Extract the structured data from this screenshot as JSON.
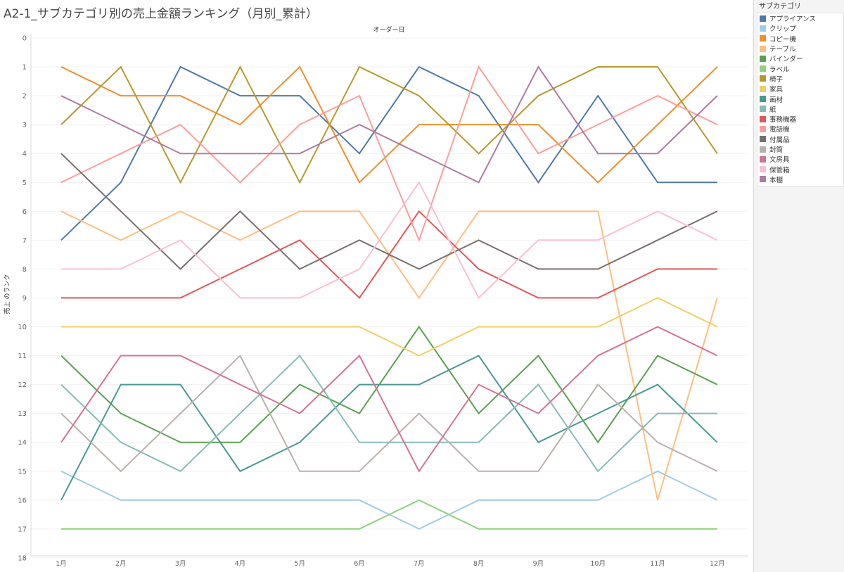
{
  "title": "A2-1_サブカテゴリ別の売上金額ランキング（月別_累計）",
  "legend": {
    "title": "サブカテゴリ",
    "items": [
      {
        "name": "アプライアンス",
        "color": "#4e79a7"
      },
      {
        "name": "クリップ",
        "color": "#a0cbe8"
      },
      {
        "name": "コピー機",
        "color": "#f28e2b"
      },
      {
        "name": "テーブル",
        "color": "#ffbe7d"
      },
      {
        "name": "バインダー",
        "color": "#59a14f"
      },
      {
        "name": "ラベル",
        "color": "#8cd17d"
      },
      {
        "name": "椅子",
        "color": "#b6992d"
      },
      {
        "name": "家具",
        "color": "#f1ce63"
      },
      {
        "name": "画材",
        "color": "#499894"
      },
      {
        "name": "紙",
        "color": "#86bcb6"
      },
      {
        "name": "事務機器",
        "color": "#e15759"
      },
      {
        "name": "電話機",
        "color": "#ff9d9a"
      },
      {
        "name": "付属品",
        "color": "#79706e"
      },
      {
        "name": "封筒",
        "color": "#bab0ac"
      },
      {
        "name": "文房具",
        "color": "#d37295"
      },
      {
        "name": "保管箱",
        "color": "#fabfd2"
      },
      {
        "name": "本棚",
        "color": "#b07aa1"
      }
    ]
  },
  "chart_data": {
    "type": "line",
    "title": "A2-1_サブカテゴリ別の売上金額ランキング（月別_累計）",
    "xlabel": "オーダー日",
    "ylabel": "売上 のランク",
    "categories": [
      "1月",
      "2月",
      "3月",
      "4月",
      "5月",
      "6月",
      "7月",
      "8月",
      "9月",
      "10月",
      "11月",
      "12月"
    ],
    "ylim": [
      0,
      18
    ],
    "y_reversed": true,
    "yticks": [
      0,
      1,
      2,
      3,
      4,
      5,
      6,
      7,
      8,
      9,
      10,
      11,
      12,
      13,
      14,
      15,
      16,
      17,
      18
    ],
    "grid": true,
    "legend_position": "right",
    "series": [
      {
        "name": "アプライアンス",
        "color": "#4e79a7",
        "values": [
          7,
          5,
          1,
          2,
          2,
          4,
          1,
          2,
          5,
          2,
          5,
          5
        ]
      },
      {
        "name": "クリップ",
        "color": "#a0cbe8",
        "values": [
          15,
          16,
          16,
          16,
          16,
          16,
          17,
          16,
          16,
          16,
          15,
          16
        ]
      },
      {
        "name": "コピー機",
        "color": "#f28e2b",
        "values": [
          1,
          2,
          2,
          3,
          1,
          5,
          3,
          3,
          3,
          5,
          3,
          1
        ]
      },
      {
        "name": "テーブル",
        "color": "#ffbe7d",
        "values": [
          6,
          7,
          6,
          7,
          6,
          6,
          9,
          6,
          6,
          6,
          16,
          9
        ]
      },
      {
        "name": "バインダー",
        "color": "#59a14f",
        "values": [
          11,
          13,
          14,
          14,
          12,
          13,
          10,
          13,
          11,
          14,
          11,
          12
        ]
      },
      {
        "name": "ラベル",
        "color": "#8cd17d",
        "values": [
          17,
          17,
          17,
          17,
          17,
          17,
          16,
          17,
          17,
          17,
          17,
          17
        ]
      },
      {
        "name": "椅子",
        "color": "#b6992d",
        "values": [
          3,
          1,
          5,
          1,
          5,
          1,
          2,
          4,
          2,
          1,
          1,
          4
        ]
      },
      {
        "name": "家具",
        "color": "#f1ce63",
        "values": [
          10,
          10,
          10,
          10,
          10,
          10,
          11,
          10,
          10,
          10,
          9,
          10
        ]
      },
      {
        "name": "画材",
        "color": "#499894",
        "values": [
          16,
          12,
          12,
          15,
          14,
          12,
          12,
          11,
          14,
          13,
          12,
          14
        ]
      },
      {
        "name": "紙",
        "color": "#86bcb6",
        "values": [
          12,
          14,
          15,
          13,
          11,
          14,
          14,
          14,
          12,
          15,
          13,
          13
        ]
      },
      {
        "name": "事務機器",
        "color": "#e15759",
        "values": [
          9,
          9,
          9,
          8,
          7,
          9,
          6,
          8,
          9,
          9,
          8,
          8
        ]
      },
      {
        "name": "電話機",
        "color": "#ff9d9a",
        "values": [
          5,
          4,
          3,
          5,
          3,
          2,
          7,
          1,
          4,
          3,
          2,
          3
        ]
      },
      {
        "name": "付属品",
        "color": "#79706e",
        "values": [
          4,
          6,
          8,
          6,
          8,
          7,
          8,
          7,
          8,
          8,
          7,
          6
        ]
      },
      {
        "name": "封筒",
        "color": "#bab0ac",
        "values": [
          13,
          15,
          13,
          11,
          15,
          15,
          13,
          15,
          15,
          12,
          14,
          15
        ]
      },
      {
        "name": "文房具",
        "color": "#d37295",
        "values": [
          14,
          11,
          11,
          12,
          13,
          11,
          15,
          12,
          13,
          11,
          10,
          11
        ]
      },
      {
        "name": "保管箱",
        "color": "#fabfd2",
        "values": [
          8,
          8,
          7,
          9,
          9,
          8,
          5,
          9,
          7,
          7,
          6,
          7
        ]
      },
      {
        "name": "本棚",
        "color": "#b07aa1",
        "values": [
          2,
          3,
          4,
          4,
          4,
          3,
          4,
          5,
          1,
          4,
          4,
          2
        ]
      }
    ]
  }
}
